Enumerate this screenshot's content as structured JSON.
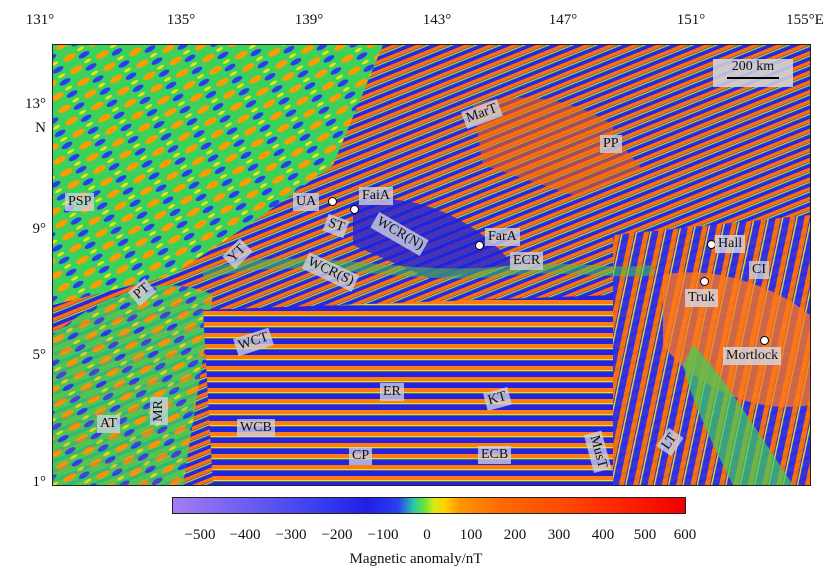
{
  "top_axis": {
    "ticks": [
      "131°",
      "135°",
      "139°",
      "143°",
      "147°",
      "151°",
      "155°E"
    ]
  },
  "left_axis": {
    "ticks": [
      "13°",
      "N",
      "9°",
      "5°",
      "1°"
    ]
  },
  "scale_bar": {
    "label": "200 km"
  },
  "tectonic_labels": [
    "PSP",
    "UA",
    "FaiA",
    "ST",
    "WCR(N)",
    "YT",
    "WCR(S)",
    "FarA",
    "ECR",
    "PT",
    "WCT",
    "ER",
    "KT",
    "AT",
    "MR",
    "WCB",
    "CP",
    "ECB",
    "MusT",
    "LT",
    "PP",
    "MarT",
    "CI"
  ],
  "places": [
    "Hall",
    "Truk",
    "Mortlock"
  ],
  "colorbar": {
    "ticks": [
      "−500",
      "−400",
      "−300",
      "−200",
      "−100",
      "0",
      "100",
      "200",
      "300",
      "400",
      "500",
      "600"
    ],
    "title": "Magnetic anomaly/nT",
    "colors": [
      "#a47cf2",
      "#3a3ff0",
      "#1f1fe6",
      "#66e23a",
      "#ffd400",
      "#ff6a00",
      "#ee0000"
    ]
  }
}
